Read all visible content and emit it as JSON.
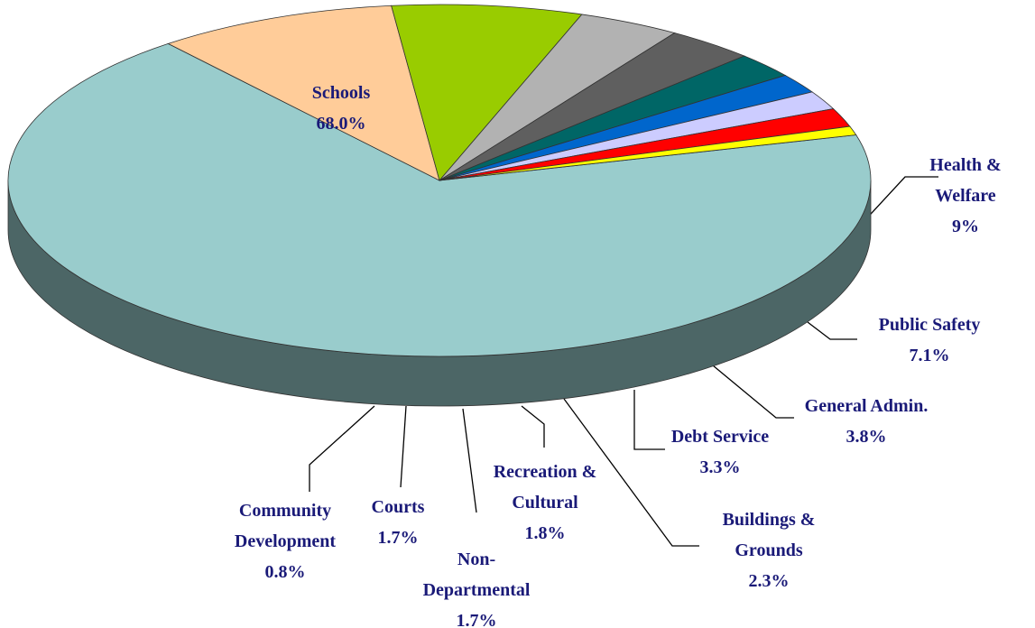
{
  "chart_data": {
    "type": "pie",
    "categories": [
      "Schools",
      "Health & Welfare",
      "Public Safety",
      "General Admin.",
      "Debt Service",
      "Buildings & Grounds",
      "Recreation & Cultural",
      "Non-Departmental",
      "Courts",
      "Community Development"
    ],
    "values": [
      68,
      9,
      7.1,
      3.8,
      3.3,
      2.3,
      1.8,
      1.7,
      1.7,
      0.8
    ],
    "value_labels": [
      "68.0%",
      "9%",
      "7.1%",
      "3.8%",
      "3.3%",
      "2.3%",
      "1.8%",
      "1.7%",
      "1.7%",
      "0.8%"
    ],
    "colors": [
      "#99cccc",
      "#ffcc99",
      "#99cc00",
      "#b2b2b2",
      "#5f5f5f",
      "#006666",
      "#0066cc",
      "#ccccff",
      "#ff0000",
      "#ffff00"
    ],
    "three_d": true
  }
}
